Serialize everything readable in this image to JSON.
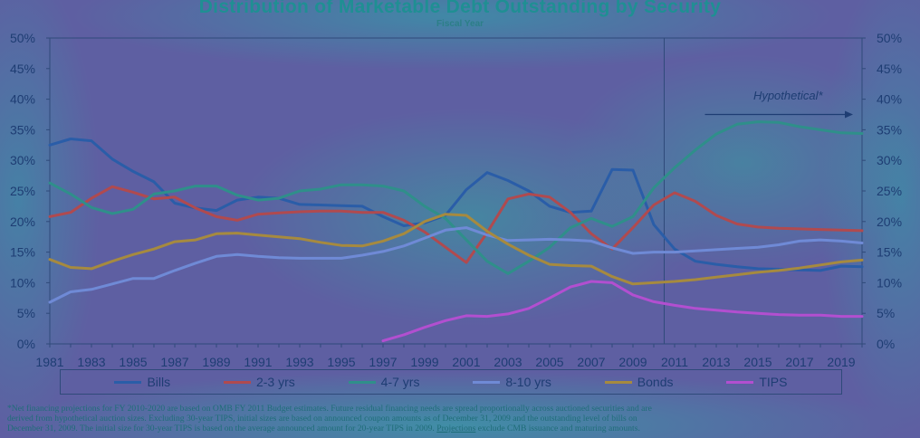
{
  "chart_data": {
    "type": "line",
    "title": "Distribution of Marketable Debt Outstanding by Security",
    "subtitle": "Fiscal Year",
    "xlabel": "Fiscal Year",
    "ylabel": "",
    "ylim": [
      0,
      50
    ],
    "y_ticks": [
      "0%",
      "5%",
      "10%",
      "15%",
      "20%",
      "25%",
      "30%",
      "35%",
      "40%",
      "45%",
      "50%"
    ],
    "x_tick_labels": [
      "1981",
      "1983",
      "1985",
      "1987",
      "1989",
      "1991",
      "1993",
      "1995",
      "1997",
      "1999",
      "2001",
      "2003",
      "2005",
      "2007",
      "2009",
      "2011",
      "2013",
      "2015",
      "2017",
      "2019"
    ],
    "x": [
      1981,
      1982,
      1983,
      1984,
      1985,
      1986,
      1987,
      1988,
      1989,
      1990,
      1991,
      1992,
      1993,
      1994,
      1995,
      1996,
      1997,
      1998,
      1999,
      2000,
      2001,
      2002,
      2003,
      2004,
      2005,
      2006,
      2007,
      2008,
      2009,
      2010,
      2011,
      2012,
      2013,
      2014,
      2015,
      2016,
      2017,
      2018,
      2019,
      2020
    ],
    "series": [
      {
        "name": "Bills",
        "color": "#2a5da8",
        "values": [
          32.5,
          33.5,
          33.2,
          30.2,
          28.2,
          26.5,
          23.0,
          22.2,
          21.8,
          23.5,
          24.0,
          23.8,
          22.8,
          22.7,
          22.6,
          22.5,
          20.8,
          19.3,
          19.8,
          21.0,
          25.2,
          28.0,
          26.7,
          25.0,
          22.5,
          21.5,
          21.7,
          28.5,
          28.4,
          19.5,
          15.5,
          13.5,
          13.0,
          12.6,
          12.3,
          12.2,
          12.1,
          12.0,
          12.7,
          12.6
        ]
      },
      {
        "name": "2-3 yrs",
        "color": "#b04a4f",
        "values": [
          20.8,
          21.5,
          23.8,
          25.7,
          24.8,
          23.7,
          24.0,
          22.2,
          20.8,
          20.2,
          21.2,
          21.4,
          21.6,
          21.7,
          21.7,
          21.5,
          21.5,
          20.2,
          18.3,
          15.8,
          13.3,
          18.2,
          23.7,
          24.5,
          24.0,
          21.5,
          18.0,
          15.5,
          19.0,
          22.7,
          24.7,
          23.3,
          21.0,
          19.6,
          19.1,
          18.9,
          18.8,
          18.7,
          18.6,
          18.5
        ]
      },
      {
        "name": "4-7 yrs",
        "color": "#2f8f8a",
        "values": [
          26.3,
          24.5,
          22.3,
          21.3,
          22.0,
          24.5,
          25.0,
          25.8,
          25.8,
          24.3,
          23.5,
          23.8,
          25.0,
          25.3,
          26.0,
          26.0,
          25.8,
          25.0,
          22.5,
          20.5,
          17.0,
          13.5,
          11.5,
          13.5,
          15.8,
          19.0,
          20.5,
          19.2,
          20.8,
          25.5,
          28.8,
          31.7,
          34.3,
          35.9,
          36.3,
          36.2,
          35.5,
          35.0,
          34.5,
          34.4
        ]
      },
      {
        "name": "8-10 yrs",
        "color": "#6f8ad6",
        "values": [
          6.8,
          8.5,
          8.9,
          9.8,
          10.7,
          10.7,
          12.0,
          13.2,
          14.3,
          14.6,
          14.3,
          14.1,
          14.0,
          14.0,
          14.0,
          14.5,
          15.1,
          16.0,
          17.3,
          18.6,
          19.0,
          17.8,
          16.9,
          17.0,
          17.1,
          17.0,
          16.8,
          15.7,
          14.8,
          15.0,
          15.0,
          15.2,
          15.4,
          15.6,
          15.8,
          16.2,
          16.8,
          17.0,
          16.8,
          16.5
        ]
      },
      {
        "name": "Bonds",
        "color": "#a68a3f",
        "values": [
          13.8,
          12.5,
          12.3,
          13.5,
          14.6,
          15.5,
          16.7,
          17.0,
          18.0,
          18.1,
          17.8,
          17.5,
          17.2,
          16.6,
          16.1,
          16.0,
          16.8,
          18.0,
          20.0,
          21.2,
          21.0,
          18.4,
          16.3,
          14.5,
          13.0,
          12.8,
          12.7,
          11.0,
          9.8,
          10.0,
          10.2,
          10.5,
          10.9,
          11.3,
          11.7,
          12.0,
          12.4,
          12.9,
          13.4,
          13.7
        ]
      },
      {
        "name": "TIPS",
        "color": "#b24fd0",
        "values": [
          null,
          null,
          null,
          null,
          null,
          null,
          null,
          null,
          null,
          null,
          null,
          null,
          null,
          null,
          null,
          null,
          0.5,
          1.5,
          2.7,
          3.8,
          4.6,
          4.5,
          4.9,
          5.8,
          7.5,
          9.3,
          10.2,
          10.0,
          8.0,
          6.9,
          6.3,
          5.8,
          5.5,
          5.2,
          5.0,
          4.8,
          4.7,
          4.7,
          4.5,
          4.5
        ]
      }
    ],
    "annotations": [
      {
        "text": "Hypothetical*",
        "from_x": 2010.5,
        "direction": "right"
      }
    ],
    "divider_x": 2010.5,
    "legend_position": "bottom"
  },
  "footnote": {
    "line1": "*Net financing  projections  for FY 2010-2020 are based on OMB FY 2011 Budget estimates.  Future residual financing needs are spread proportionally  across auctioned securities  and are",
    "line2": "derived from hypothetical  auction sizes.  Excluding  30-year TIPS, initial sizes are based on announced coupon amounts as of December 31, 2009 and the outstanding level of bills on",
    "line3a": "December 31, 2009.  The initial size for 30-year TIPS is based on the average announced amount for 20-year TIPS in 2009.  ",
    "line3b": "Projections",
    "line3c": "  exclude CMB issuance and maturing amounts."
  }
}
